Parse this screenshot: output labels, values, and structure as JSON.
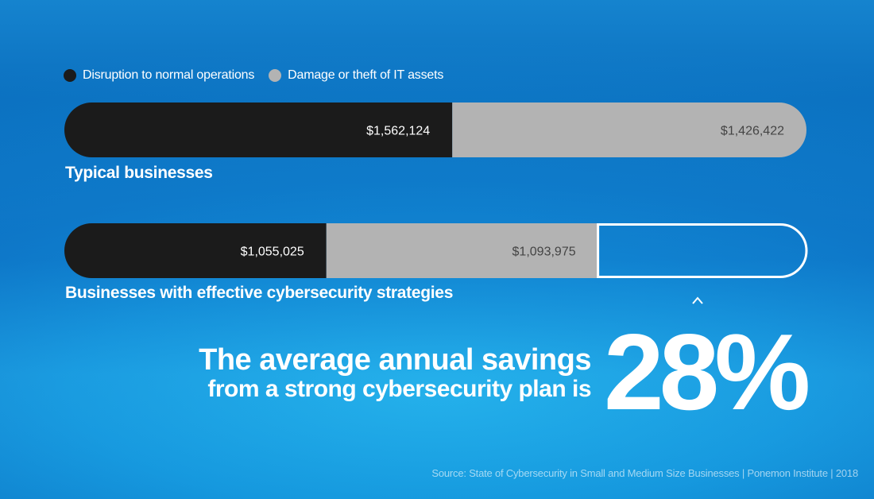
{
  "colors": {
    "disruption": "#1b1b1b",
    "damage": "#b3b3b3",
    "savings_outline": "#ffffff",
    "value_text_dark": "#ffffff",
    "value_text_light": "#444444"
  },
  "chart_data": {
    "type": "bar",
    "orientation": "horizontal",
    "stacked": true,
    "legend_position": "top-left",
    "categories": [
      "Typical businesses",
      "Businesses with effective cybersecurity strategies"
    ],
    "series": [
      {
        "name": "Disruption to normal operations",
        "values": [
          1562124,
          1055025
        ],
        "labels": [
          "$1,562,124",
          "$1,055,025"
        ]
      },
      {
        "name": "Damage or theft of IT assets",
        "values": [
          1426422,
          1093975
        ],
        "labels": [
          "$1,426,422",
          "$1,093,975"
        ]
      }
    ],
    "reference_total": 2988546
  },
  "headline": {
    "line1": "The average annual savings",
    "line2": "from a strong cybersecurity plan is",
    "percent": "28%"
  },
  "source": "Source: State of Cybersecurity in Small and Medium Size Businesses | Ponemon Institute | 2018"
}
